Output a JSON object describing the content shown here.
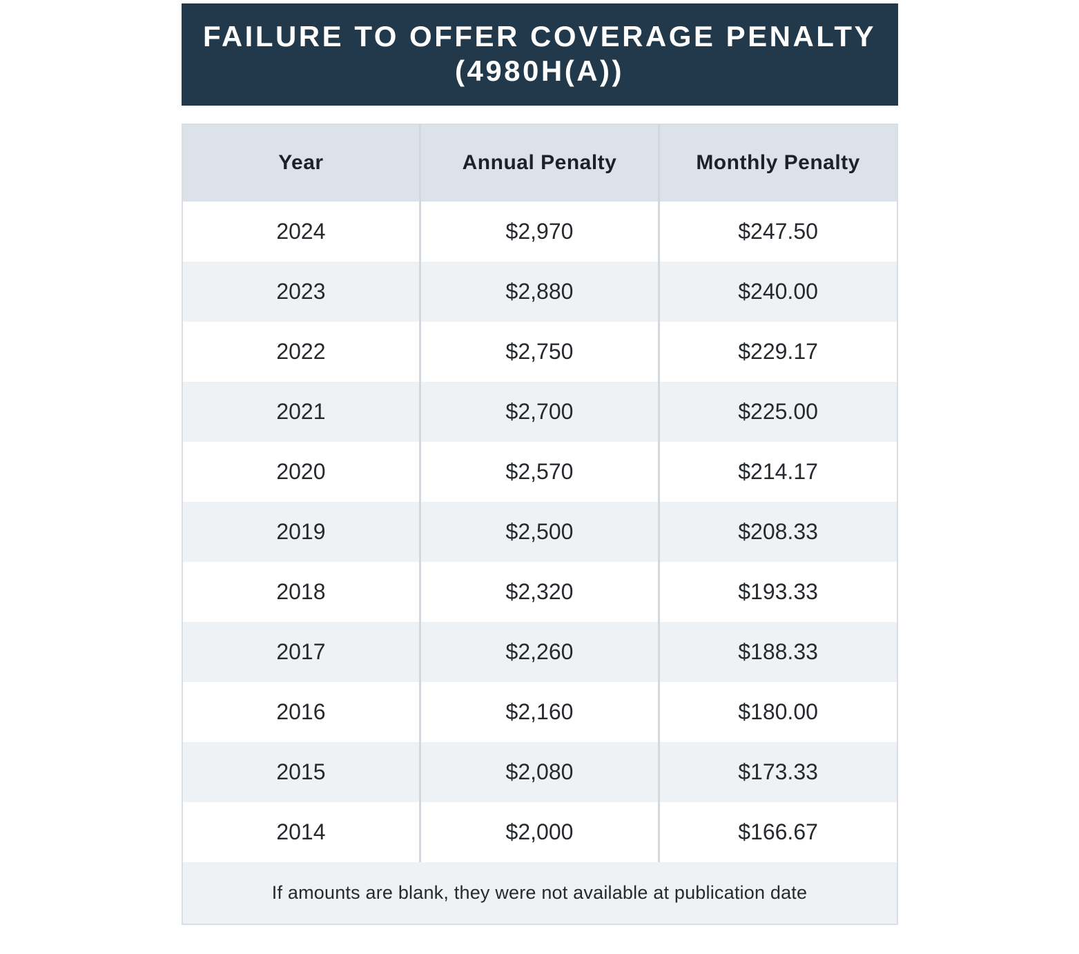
{
  "banner": {
    "title_line1": "FAILURE TO OFFER COVERAGE PENALTY",
    "title_line2": "(4980H(A))",
    "background_color": "#21394A",
    "text_color": "#FFFFFF"
  },
  "table": {
    "columns": [
      "Year",
      "Annual Penalty",
      "Monthly Penalty"
    ],
    "rows": [
      [
        "2024",
        "$2,970",
        "$247.50"
      ],
      [
        "2023",
        "$2,880",
        "$240.00"
      ],
      [
        "2022",
        "$2,750",
        "$229.17"
      ],
      [
        "2021",
        "$2,700",
        "$225.00"
      ],
      [
        "2020",
        "$2,570",
        "$214.17"
      ],
      [
        "2019",
        "$2,500",
        "$208.33"
      ],
      [
        "2018",
        "$2,320",
        "$193.33"
      ],
      [
        "2017",
        "$2,260",
        "$188.33"
      ],
      [
        "2016",
        "$2,160",
        "$180.00"
      ],
      [
        "2015",
        "$2,080",
        "$173.33"
      ],
      [
        "2014",
        "$2,000",
        "$166.67"
      ]
    ],
    "footnote": "If amounts are blank, they were not available at publication date",
    "colors": {
      "column_header_bg": "#DCE2E9",
      "row_bg": "#FFFFFF",
      "row_alt_bg": "#EFF2F5",
      "divider": "#D2D8E0",
      "outer_border": "#D9DEE4",
      "text": "#26292E"
    }
  },
  "chart_data": {
    "type": "table",
    "title": "FAILURE TO OFFER COVERAGE PENALTY (4980H(A))",
    "columns": [
      "Year",
      "Annual Penalty",
      "Monthly Penalty"
    ],
    "categories": [
      "2024",
      "2023",
      "2022",
      "2021",
      "2020",
      "2019",
      "2018",
      "2017",
      "2016",
      "2015",
      "2014"
    ],
    "series": [
      {
        "name": "Annual Penalty",
        "values": [
          2970,
          2880,
          2750,
          2700,
          2570,
          2500,
          2320,
          2260,
          2160,
          2080,
          2000
        ]
      },
      {
        "name": "Monthly Penalty",
        "values": [
          247.5,
          240.0,
          229.17,
          225.0,
          214.17,
          208.33,
          193.33,
          188.33,
          180.0,
          173.33,
          166.67
        ]
      }
    ],
    "annotations": [
      "If amounts are blank, they were not available at publication date"
    ]
  }
}
